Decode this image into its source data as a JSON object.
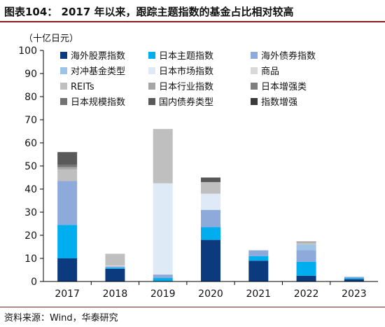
{
  "figure": {
    "title": "图表104：  2017 年以来，跟踪主题指数的基金占比相对较高",
    "unit": "（十亿日元）",
    "source": "资料来源：Wind，华泰研究"
  },
  "chart_data": {
    "type": "bar",
    "stacked": true,
    "title": "",
    "ylabel": "（十亿日元）",
    "ylim": [
      0,
      100
    ],
    "yticks": [
      0,
      10,
      20,
      30,
      40,
      50,
      60,
      70,
      80,
      90,
      100
    ],
    "categories": [
      "2017",
      "2018",
      "2019",
      "2020",
      "2021",
      "2022",
      "2023"
    ],
    "legend_position": "top",
    "series": [
      {
        "name": "海外股票指数",
        "color": "#0b3a7e",
        "values": [
          10,
          5.5,
          0,
          18,
          9,
          2.5,
          1
        ]
      },
      {
        "name": "日本主题指数",
        "color": "#00aeef",
        "values": [
          14.5,
          0.5,
          1.5,
          5.5,
          2,
          6,
          0.5
        ]
      },
      {
        "name": "海外债券指数",
        "color": "#8eaadb",
        "values": [
          19,
          0.5,
          1.5,
          7.5,
          2.5,
          5,
          0.5
        ]
      },
      {
        "name": "对冲基金类型",
        "color": "#9dc3e6",
        "values": [
          0,
          0,
          0,
          0,
          0,
          2.5,
          0
        ]
      },
      {
        "name": "日本市场指数",
        "color": "#deebf7",
        "values": [
          0,
          0,
          39.5,
          7,
          0,
          0,
          0
        ]
      },
      {
        "name": "商品",
        "color": "#d9d9d9",
        "values": [
          0,
          0.5,
          0,
          0,
          0,
          0,
          0
        ]
      },
      {
        "name": "REITs",
        "color": "#bfbfbf",
        "values": [
          5,
          5,
          23.5,
          5,
          0,
          1,
          0
        ]
      },
      {
        "name": "日本行业指数",
        "color": "#a6a6a6",
        "values": [
          1,
          0,
          0,
          0,
          0,
          0,
          0
        ]
      },
      {
        "name": "日本增强类",
        "color": "#7f7f7f",
        "values": [
          0,
          0,
          0,
          0,
          0,
          0.3,
          0
        ]
      },
      {
        "name": "日本规模指数",
        "color": "#737373",
        "values": [
          1,
          0,
          0,
          0,
          0,
          0,
          0
        ]
      },
      {
        "name": "国内债券类型",
        "color": "#595959",
        "values": [
          5.5,
          0,
          0,
          2,
          0,
          0,
          0
        ]
      },
      {
        "name": "指数增强",
        "color": "#3a3a3a",
        "values": [
          0,
          0,
          0,
          0,
          0,
          0,
          0
        ]
      }
    ]
  }
}
